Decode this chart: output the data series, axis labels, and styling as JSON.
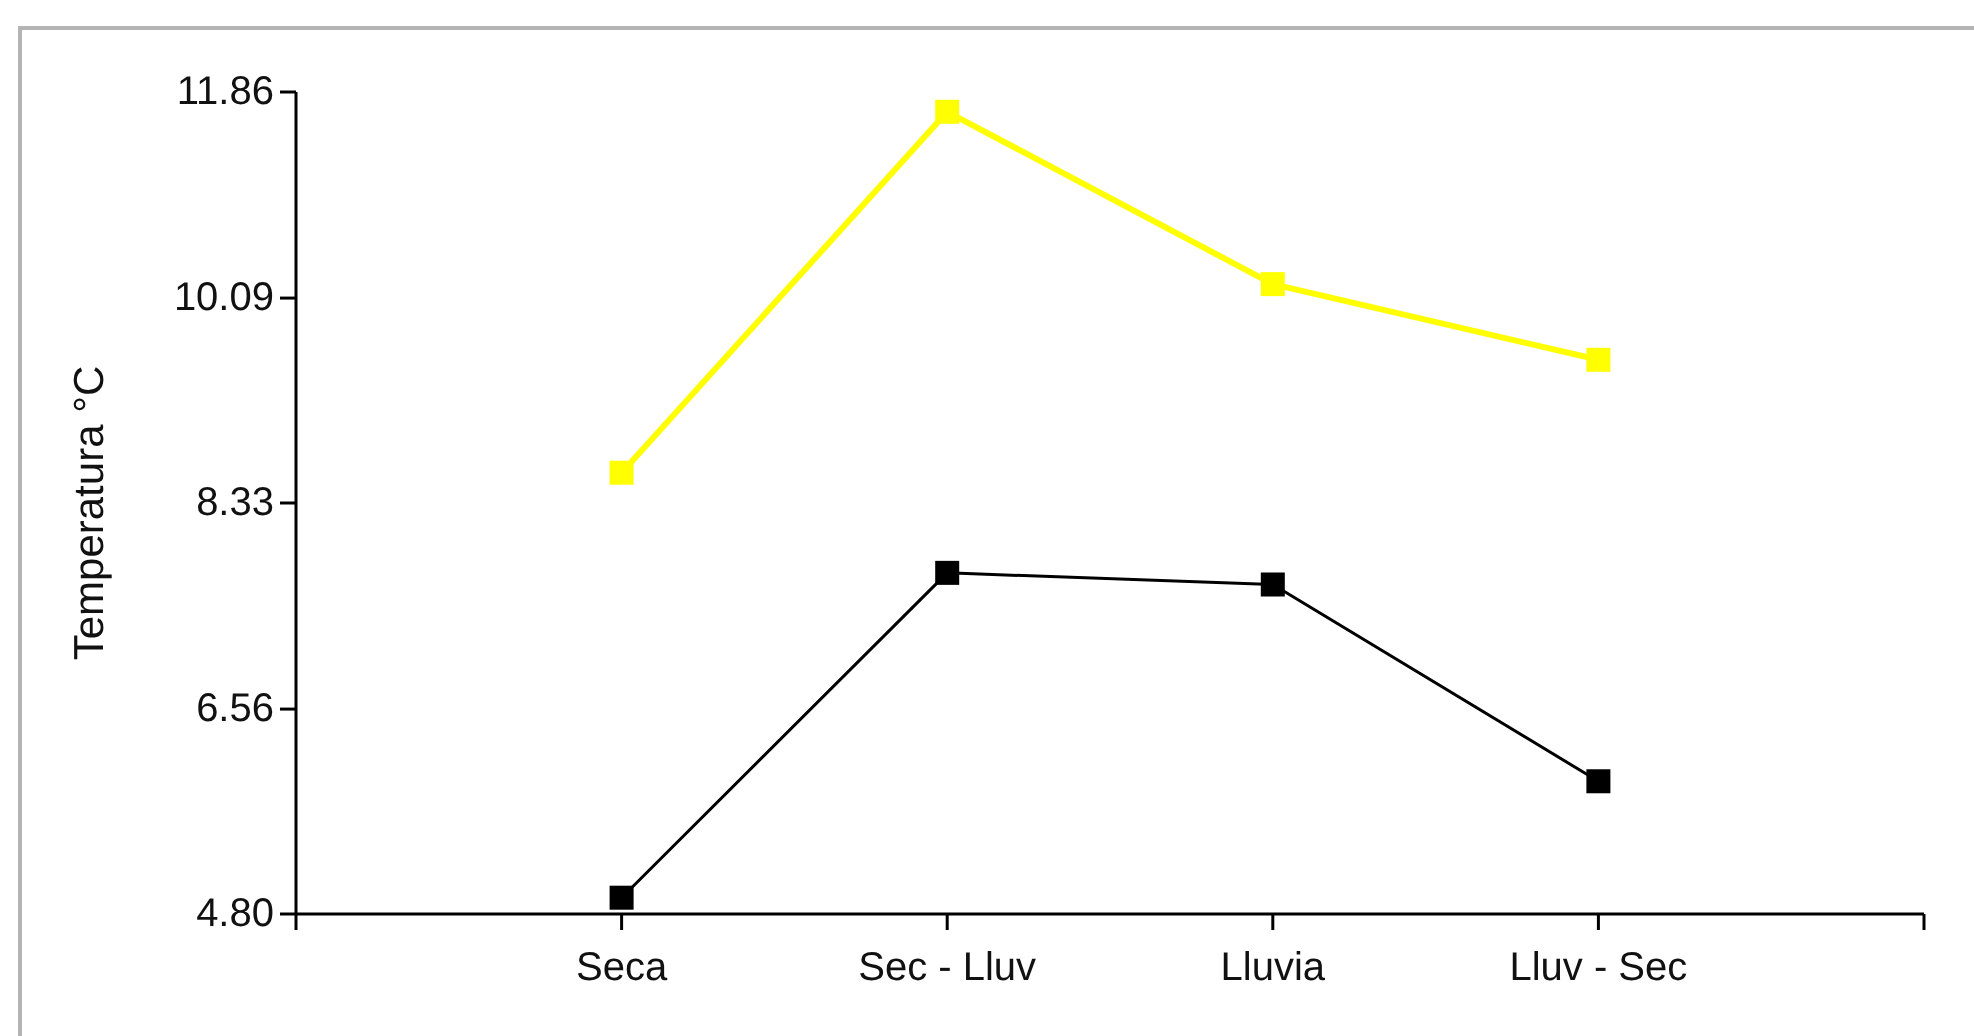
{
  "chart_data": {
    "type": "line",
    "ylabel": "Temperatura °C",
    "categories": [
      "Seca",
      "Sec - Lluv",
      "Lluvia",
      "Lluv - Sec"
    ],
    "series": [
      {
        "color": "#ffff00",
        "values": [
          8.59,
          11.69,
          10.21,
          9.56
        ]
      },
      {
        "color": "#000000",
        "values": [
          4.94,
          7.73,
          7.63,
          5.94
        ]
      }
    ],
    "ylim": [
      4.8,
      11.86
    ],
    "yticks": [
      {
        "value": 4.8,
        "label": "4.80"
      },
      6.56,
      8.33,
      10.09,
      11.86
    ],
    "marker": "square",
    "line_style": "solid"
  }
}
